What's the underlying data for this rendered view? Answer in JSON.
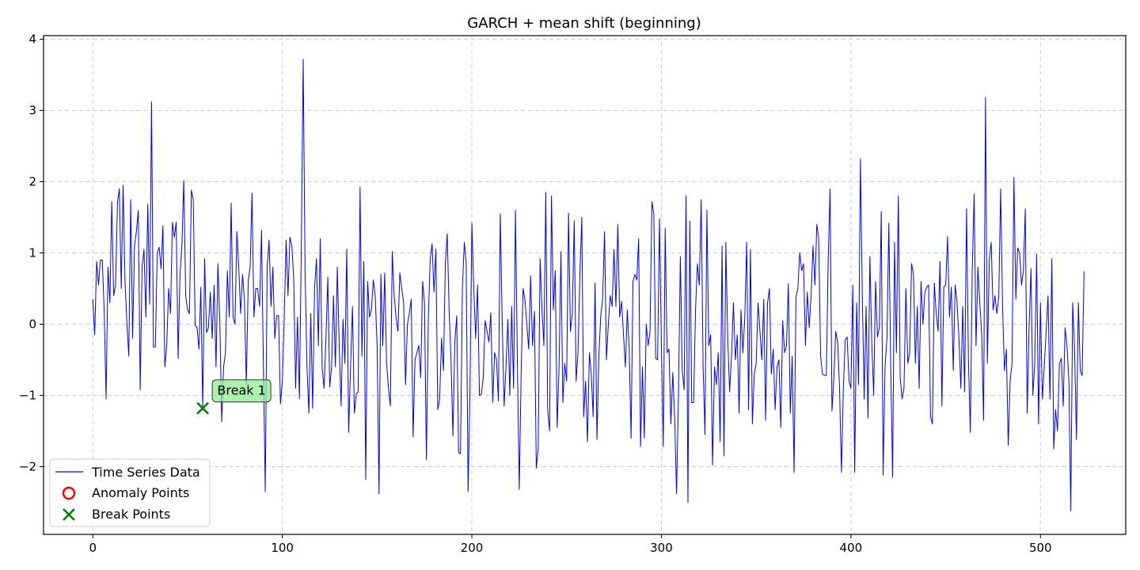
{
  "chart_data": {
    "type": "line",
    "title": "GARCH + mean shift (beginning)",
    "xlabel": "",
    "ylabel": "",
    "xlim": [
      -26,
      545
    ],
    "ylim": [
      -2.95,
      4.05
    ],
    "x_ticks": [
      0,
      100,
      200,
      300,
      400,
      500
    ],
    "y_ticks": [
      -2,
      -1,
      0,
      1,
      2,
      3,
      4
    ],
    "y_tick_labels": [
      "−2",
      "−1",
      "0",
      "1",
      "2",
      "3",
      "4"
    ],
    "grid": true,
    "legend_position": "lower-left",
    "legend": [
      {
        "label": "Time Series Data",
        "marker": "line",
        "color": "#0000ff"
      },
      {
        "label": "Anomaly Points",
        "marker": "circle",
        "color": "#ff0000"
      },
      {
        "label": "Break Points",
        "marker": "x",
        "color": "#008000"
      }
    ],
    "series": [
      {
        "name": "Time Series Data",
        "color": "#0000ff",
        "x_start": 0,
        "x_step": 1,
        "values": [
          0.35,
          -0.15,
          0.88,
          0.55,
          0.9,
          0.9,
          0.2,
          -1.05,
          0.8,
          0.3,
          1.72,
          0.4,
          0.55,
          1.7,
          1.9,
          0.5,
          1.95,
          0.6,
          0.0,
          -0.45,
          1.75,
          -0.2,
          1.1,
          1.3,
          1.6,
          -0.92,
          0.8,
          1.05,
          0.1,
          1.68,
          0.28,
          3.12,
          -0.32,
          -0.32,
          1.0,
          1.08,
          0.78,
          1.38,
          -0.6,
          -0.3,
          0.5,
          0.15,
          1.43,
          1.22,
          1.43,
          -0.48,
          0.7,
          1.1,
          2.02,
          0.4,
          0.2,
          0.15,
          1.88,
          1.75,
          -0.02,
          -0.05,
          -0.35,
          0.52,
          -1.18,
          0.92,
          -0.12,
          -0.05,
          0.45,
          -0.2,
          0.55,
          -0.6,
          0.85,
          0.05,
          -1.37,
          -0.6,
          -0.4,
          0.75,
          0.1,
          1.7,
          0.1,
          0.0,
          1.3,
          0.8,
          0.15,
          0.7,
          0.35,
          -0.85,
          0.6,
          0.8,
          1.84,
          0.1,
          0.5,
          0.5,
          0.25,
          1.32,
          -0.58,
          -2.35,
          0.8,
          1.18,
          0.25,
          0.8,
          -0.2,
          0.12,
          0.12,
          -1.12,
          -0.8,
          0.1,
          1.18,
          0.4,
          1.22,
          1.1,
          0.65,
          -0.9,
          0.1,
          -1.05,
          1.05,
          3.72,
          0.75,
          -0.6,
          -1.25,
          0.15,
          -1.18,
          0.5,
          0.92,
          -0.3,
          1.2,
          -0.6,
          -0.9,
          -0.2,
          0.66,
          -0.88,
          -0.6,
          0.4,
          -0.6,
          0.8,
          -0.3,
          -1.15,
          0.07,
          -0.55,
          1.05,
          -1.52,
          -0.6,
          0.25,
          -1.25,
          -0.98,
          -0.95,
          1.92,
          -0.45,
          0.88,
          -2.18,
          0.6,
          0.1,
          0.2,
          0.62,
          0.4,
          -0.3,
          -2.38,
          0.7,
          -0.3,
          0.72,
          -0.55,
          -0.9,
          -1.15,
          1.02,
          0.4,
          0.1,
          -0.1,
          0.72,
          0.5,
          0.3,
          -0.85,
          0.0,
          0.15,
          0.35,
          -1.58,
          -0.5,
          -0.4,
          -0.3,
          -0.75,
          0.6,
          0.3,
          -1.9,
          0.05,
          0.9,
          1.13,
          0.45,
          1.05,
          -1.2,
          -1.05,
          -0.2,
          -0.65,
          0.85,
          1.27,
          0.2,
          -0.5,
          -1.57,
          -0.25,
          0.12,
          -1.8,
          -1.82,
          0.5,
          1.15,
          0.85,
          -2.35,
          -0.95,
          1.42,
          0.5,
          -0.2,
          0.55,
          -1.0,
          -0.98,
          -0.75,
          0.05,
          -0.1,
          -0.25,
          0.16,
          -1.1,
          -0.4,
          -0.5,
          -1.08,
          1.55,
          0.05,
          -1.15,
          -0.6,
          0.07,
          -1.0,
          0.25,
          -0.9,
          1.6,
          -0.5,
          -2.32,
          -0.7,
          0.5,
          0.35,
          0.0,
          -0.35,
          0.68,
          -0.3,
          0.18,
          -2.02,
          -1.75,
          0.92,
          0.2,
          -0.3,
          1.85,
          -1.2,
          -1.5,
          1.8,
          0.2,
          0.75,
          -1.45,
          -0.6,
          1.02,
          -1.1,
          -0.55,
          -0.8,
          1.56,
          -0.1,
          0.15,
          1.45,
          -0.8,
          -0.4,
          0.7,
          1.5,
          -1.3,
          -0.8,
          -1.65,
          -0.4,
          -0.7,
          -1.3,
          0.58,
          -1.62,
          -0.45,
          0.12,
          0.35,
          1.3,
          -0.5,
          0.0,
          0.4,
          0.25,
          1.05,
          0.25,
          1.4,
          0.1,
          0.32,
          -0.15,
          -0.6,
          0.2,
          -0.35,
          -1.6,
          0.6,
          0.7,
          0.62,
          1.2,
          -1.72,
          -0.6,
          -1.6,
          0.0,
          -0.3,
          -0.1,
          1.72,
          1.55,
          -0.48,
          -0.5,
          1.48,
          -0.3,
          -1.72,
          1.35,
          -0.4,
          -0.35,
          -1.4,
          -0.68,
          -1.3,
          -2.38,
          -1.0,
          0.95,
          -0.65,
          -0.92,
          1.8,
          -2.5,
          1.45,
          -1.1,
          -1.1,
          0.2,
          0.85,
          0.55,
          1.75,
          -0.6,
          -1.55,
          1.6,
          -0.3,
          -0.15,
          -1.98,
          -0.6,
          -0.85,
          -0.4,
          -1.65,
          1.1,
          -1.85,
          1.15,
          -0.2,
          -0.95,
          -0.45,
          0.3,
          -0.5,
          -0.15,
          -1.25,
          0.2,
          -0.4,
          0.1,
          1.15,
          -1.2,
          1.05,
          -1.4,
          -0.7,
          -0.55,
          0.3,
          -0.1,
          -0.5,
          0.35,
          -1.35,
          0.3,
          0.5,
          -0.7,
          -0.35,
          -1.2,
          -0.6,
          -0.5,
          -1.45,
          0.05,
          -0.4,
          -0.3,
          0.57,
          -1.25,
          -0.45,
          -2.08,
          0.38,
          0.5,
          1.0,
          0.75,
          0.85,
          -0.3,
          0.45,
          -0.05,
          0.42,
          1.1,
          0.55,
          1.4,
          1.2,
          -0.45,
          -0.7,
          -0.72,
          -0.72,
          0.88,
          1.9,
          -1.22,
          -0.75,
          -0.1,
          -0.25,
          -0.9,
          -2.08,
          -0.9,
          -0.22,
          -0.18,
          -0.8,
          -0.9,
          0.55,
          -2.08,
          0.3,
          -0.85,
          2.32,
          0.4,
          -1.05,
          0.25,
          -1.32,
          0.95,
          -0.25,
          -1.0,
          0.6,
          -0.18,
          -0.05,
          1.58,
          -2.12,
          -0.6,
          -0.2,
          1.42,
          -0.6,
          -2.15,
          1.15,
          -0.4,
          1.8,
          -0.75,
          -1.05,
          -0.9,
          0.5,
          -0.55,
          -0.4,
          0.85,
          0.7,
          -0.55,
          0.25,
          -0.9,
          0.6,
          0.0,
          0.45,
          0.52,
          0.55,
          -1.3,
          -1.4,
          0.58,
          0.15,
          -0.1,
          0.88,
          -1.15,
          0.52,
          0.55,
          1.23,
          0.1,
          0.52,
          -0.65,
          0.55,
          0.3,
          -0.2,
          -0.9,
          0.25,
          -0.95,
          1.62,
          -0.5,
          -1.52,
          0.75,
          1.83,
          -0.3,
          0.8,
          0.3,
          -0.15,
          -1.35,
          3.18,
          -0.55,
          0.9,
          1.15,
          0.2,
          0.4,
          0.15,
          0.38,
          1.9,
          0.25,
          -0.65,
          -0.35,
          -1.7,
          -0.8,
          -0.55,
          2.06,
          0.35,
          1.07,
          1.0,
          0.55,
          0.75,
          1.62,
          -1.25,
          -0.05,
          0.78,
          -1.0,
          -0.55,
          0.98,
          -1.4,
          0.3,
          -1.05,
          -0.6,
          -0.1,
          0.4,
          -1.05,
          0.92,
          -1.75,
          -1.2,
          -1.5,
          -0.55,
          -0.48,
          -1.15,
          -0.05,
          -0.3,
          -0.8,
          -2.62,
          0.3,
          -0.35,
          -1.62,
          0.3,
          -0.65,
          -0.72,
          0.74
        ]
      }
    ],
    "anomaly_points": [],
    "break_points": [
      {
        "x": 58,
        "y": -1.18,
        "label": "Break 1"
      }
    ]
  }
}
